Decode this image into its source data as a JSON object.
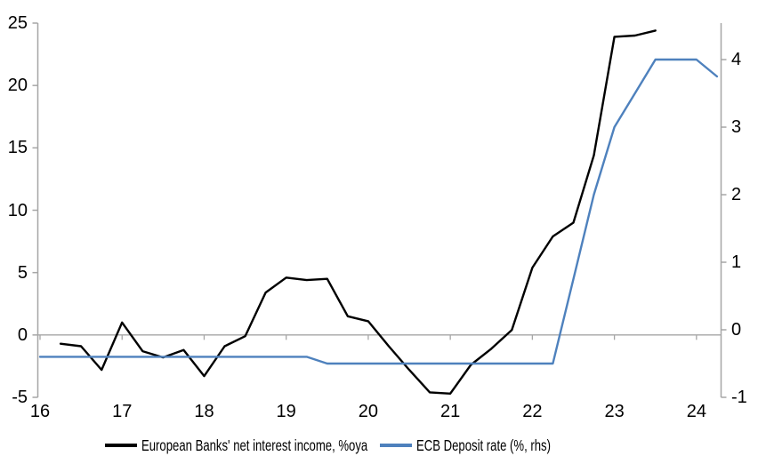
{
  "chart_data": {
    "type": "line",
    "series": [
      {
        "name": "European Banks' net interest income, %oya",
        "color": "#000000",
        "axis": "left",
        "x": [
          16.25,
          16.5,
          16.75,
          17.0,
          17.25,
          17.5,
          17.75,
          18.0,
          18.25,
          18.5,
          18.75,
          19.0,
          19.25,
          19.5,
          19.75,
          20.0,
          20.25,
          20.5,
          20.75,
          21.0,
          21.25,
          21.5,
          21.75,
          22.0,
          22.25,
          22.5,
          22.75,
          23.0,
          23.25,
          23.5
        ],
        "values": [
          -0.7,
          -0.9,
          -2.8,
          1.0,
          -1.3,
          -1.8,
          -1.2,
          -3.3,
          -0.9,
          -0.1,
          3.4,
          4.6,
          4.4,
          4.5,
          1.5,
          1.1,
          -0.9,
          -2.8,
          -4.6,
          -4.7,
          -2.4,
          -1.1,
          0.4,
          5.4,
          7.9,
          9.0,
          14.4,
          23.9,
          24.0,
          24.4
        ]
      },
      {
        "name": "ECB Deposit rate (%, rhs)",
        "color": "#4E81BD",
        "axis": "right",
        "x": [
          16.0,
          16.25,
          16.5,
          16.75,
          17.0,
          17.25,
          17.5,
          17.75,
          18.0,
          18.25,
          18.5,
          18.75,
          19.0,
          19.25,
          19.5,
          19.75,
          20.0,
          20.25,
          20.5,
          20.75,
          21.0,
          21.25,
          21.5,
          21.75,
          22.0,
          22.25,
          22.5,
          22.75,
          23.0,
          23.25,
          23.5,
          23.75,
          24.0,
          24.25
        ],
        "values": [
          -0.4,
          -0.4,
          -0.4,
          -0.4,
          -0.4,
          -0.4,
          -0.4,
          -0.4,
          -0.4,
          -0.4,
          -0.4,
          -0.4,
          -0.4,
          -0.4,
          -0.5,
          -0.5,
          -0.5,
          -0.5,
          -0.5,
          -0.5,
          -0.5,
          -0.5,
          -0.5,
          -0.5,
          -0.5,
          -0.5,
          0.75,
          2.0,
          3.0,
          3.5,
          4.0,
          4.0,
          4.0,
          3.75
        ]
      }
    ],
    "left_axis": {
      "min": -5,
      "max": 25,
      "ticks": [
        25,
        20,
        15,
        10,
        5,
        0,
        -5
      ]
    },
    "right_axis": {
      "min": -1,
      "max": 4.54,
      "ticks": [
        4,
        3,
        2,
        1,
        0,
        -1
      ]
    },
    "x_axis": {
      "min": 16,
      "max": 24.3,
      "ticks": [
        16,
        17,
        18,
        19,
        20,
        21,
        22,
        23,
        24
      ]
    },
    "gridlines": "zero-baseline-only",
    "legend_position": "bottom",
    "axis_color": "#A6A6A6",
    "background": "#FFFFFF"
  }
}
